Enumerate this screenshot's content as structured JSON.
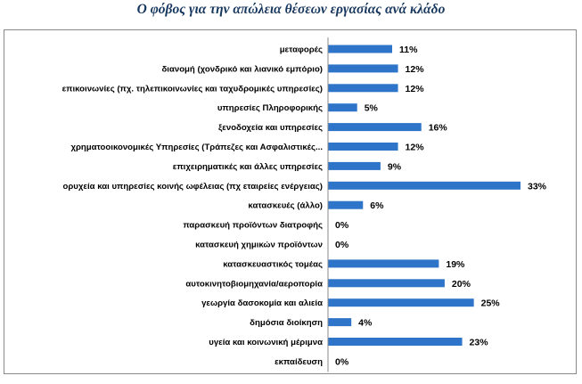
{
  "title": "Ο φόβος για την απώλεια θέσεων εργασίας ανά κλάδο",
  "colors": {
    "bar": "#2e74c9",
    "axis": "#8a8a8a",
    "title": "#17375e"
  },
  "chart_data": {
    "type": "bar",
    "orientation": "horizontal",
    "title": "Ο φόβος για την απώλεια θέσεων εργασίας ανά κλάδο",
    "xlabel": "",
    "ylabel": "",
    "grid": false,
    "legend": "none",
    "xlim": [
      0,
      33
    ],
    "value_format": "percent",
    "categories": [
      "μεταφορές",
      "διανομή (χονδρικό και λιανικό εμπόριο)",
      "επικοινωνίες (πχ. τηλεπικοινωνίες και ταχυδρομικές υπηρεσίες)",
      "υπηρεσίες Πληροφορικής",
      "ξενοδοχεία και υπηρεσίες",
      "χρηματοοικονομικές Υπηρεσίες (Τράπεζες και Ασφαλιστικές...",
      "επιχειρηματικές και άλλες υπηρεσίες",
      "ορυχεία και υπηρεσίες κοινής ωφέλειας (πχ εταιρείες ενέργειας)",
      "κατασκευές (άλλο)",
      "παρασκευή προϊόντων διατροφής",
      "κατασκευή χημικών προϊόντων",
      "κατασκευαστικός τομέας",
      "αυτοκινητοβιομηχανία/αεροπορία",
      "γεωργία δασοκομία και αλιεία",
      "δημόσια διοίκηση",
      "υγεία και κοινωνική μέριμνα",
      "εκπαίδευση"
    ],
    "values": [
      11,
      12,
      12,
      5,
      16,
      12,
      9,
      33,
      6,
      0,
      0,
      19,
      20,
      25,
      4,
      23,
      0
    ],
    "labels": [
      "11%",
      "12%",
      "12%",
      "5%",
      "16%",
      "12%",
      "9%",
      "33%",
      "6%",
      "0%",
      "0%",
      "19%",
      "20%",
      "25%",
      "4%",
      "23%",
      "0%"
    ]
  }
}
